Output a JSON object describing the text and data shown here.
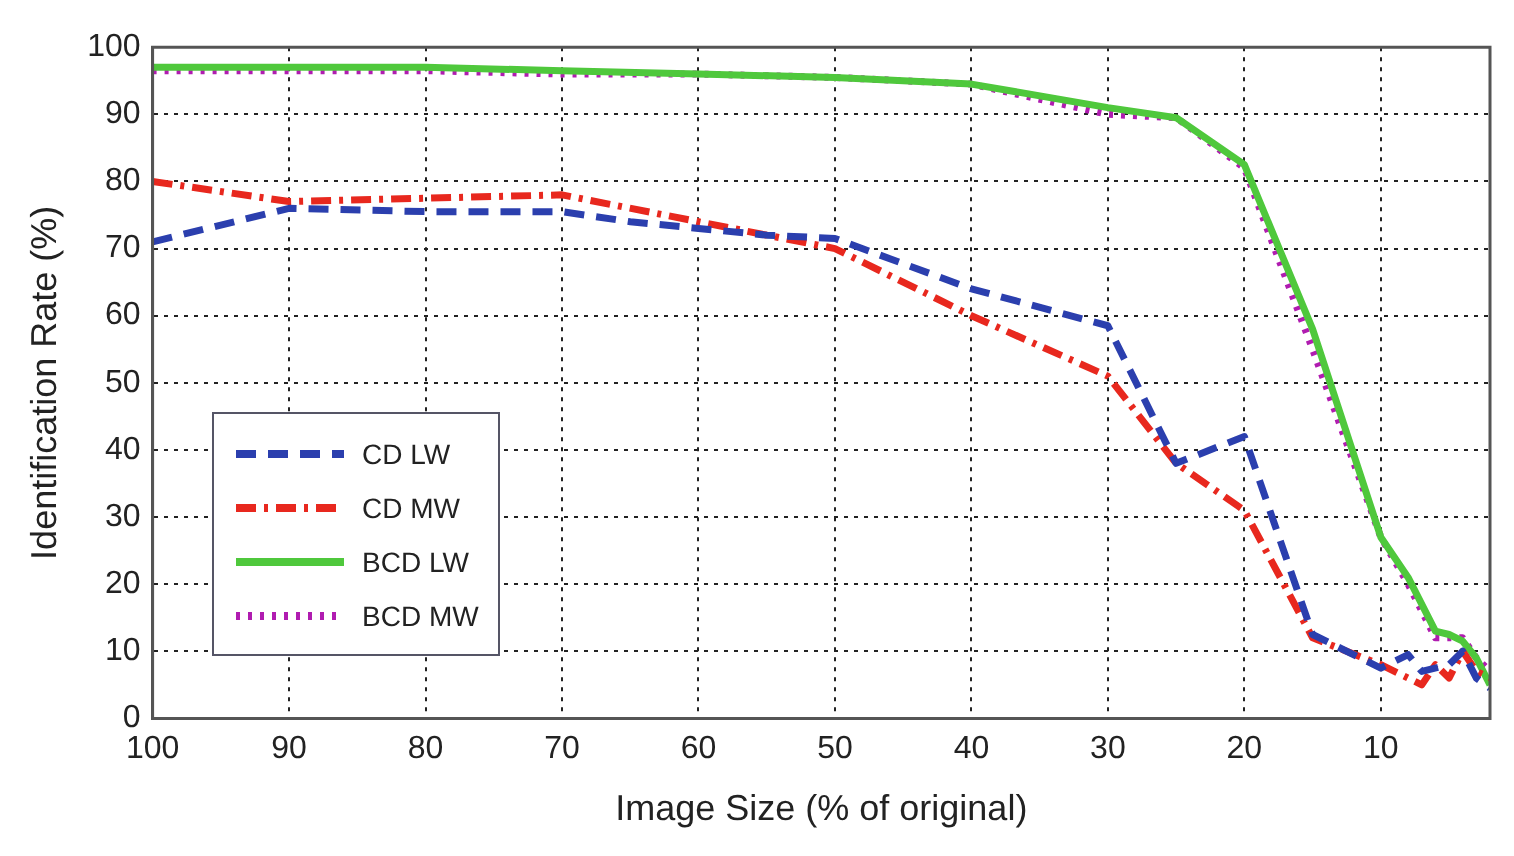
{
  "chart_data": {
    "type": "line",
    "xlabel": "Image Size (% of original)",
    "ylabel": "Identification Rate (%)",
    "xlim": [
      100,
      2
    ],
    "xticks": [
      100,
      90,
      80,
      70,
      60,
      50,
      40,
      30,
      20,
      10
    ],
    "ylim": [
      0,
      100
    ],
    "yticks": [
      0,
      10,
      20,
      30,
      40,
      50,
      60,
      70,
      80,
      90,
      100
    ],
    "grid": true,
    "legend": "bottom left",
    "marker": "none",
    "series": [
      {
        "name": "CD LW",
        "color": "#2b3fae",
        "line_style": "dashed",
        "x": [
          100,
          90,
          80,
          70,
          65,
          60,
          55,
          50,
          40,
          30,
          25,
          20,
          15,
          10,
          8,
          7,
          5,
          4,
          3,
          2
        ],
        "values": [
          71,
          76,
          75.5,
          75.5,
          74,
          73,
          72,
          71.5,
          64,
          58.5,
          38,
          42,
          12.5,
          7.5,
          9.5,
          7,
          8,
          10,
          6,
          4.5
        ]
      },
      {
        "name": "CD MW",
        "color": "#e8281e",
        "line_style": "dashdot",
        "x": [
          100,
          90,
          80,
          70,
          60,
          50,
          40,
          30,
          25,
          20,
          15,
          10,
          9,
          7,
          6,
          5,
          4,
          3,
          2
        ],
        "values": [
          80,
          77,
          77.5,
          78,
          74,
          70,
          60,
          51,
          38,
          31,
          12,
          8,
          7,
          5,
          8,
          6,
          10,
          7,
          6
        ]
      },
      {
        "name": "BCD LW",
        "color": "#4fc83c",
        "line_style": "solid",
        "x": [
          100,
          90,
          80,
          70,
          60,
          50,
          40,
          30,
          25,
          20,
          15,
          10,
          8,
          6,
          5,
          4,
          3,
          2
        ],
        "values": [
          97,
          97,
          97,
          96.5,
          96,
          95.5,
          94.5,
          91,
          89.5,
          82.5,
          58,
          27,
          21,
          13,
          12.5,
          11.5,
          9,
          5
        ]
      },
      {
        "name": "BCD MW",
        "color": "#b01cb0",
        "line_style": "dotted",
        "x": [
          100,
          90,
          80,
          70,
          60,
          50,
          40,
          30,
          25,
          20,
          15,
          10,
          8,
          6,
          4,
          3,
          2
        ],
        "values": [
          96.5,
          96.5,
          96.5,
          96,
          96,
          95.5,
          94.5,
          90,
          89.5,
          82,
          55,
          27,
          20,
          12,
          12,
          9,
          7
        ]
      }
    ]
  }
}
